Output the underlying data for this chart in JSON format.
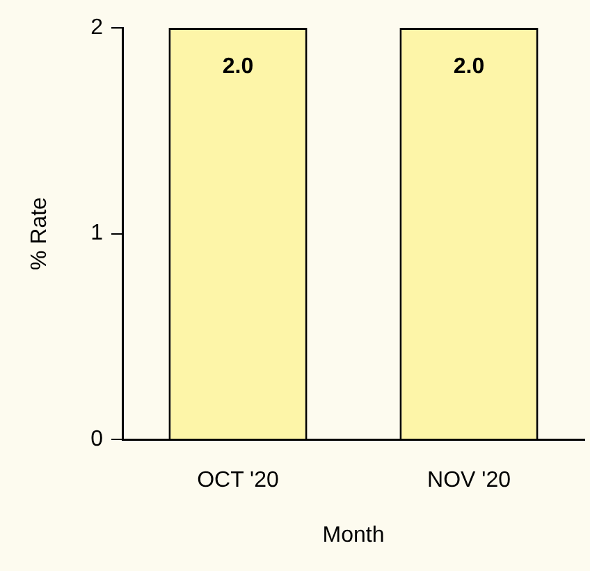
{
  "chart_data": {
    "type": "bar",
    "xlabel": "Month",
    "ylabel": "% Rate",
    "categories": [
      "OCT '20",
      "NOV '20"
    ],
    "values": [
      2.0,
      2.0
    ],
    "color": "#fdf5a8",
    "value_labels": [
      "2.0",
      "2.0"
    ],
    "ylim": [
      0,
      2
    ],
    "yticks": [
      0,
      1,
      2
    ],
    "grid": false
  }
}
